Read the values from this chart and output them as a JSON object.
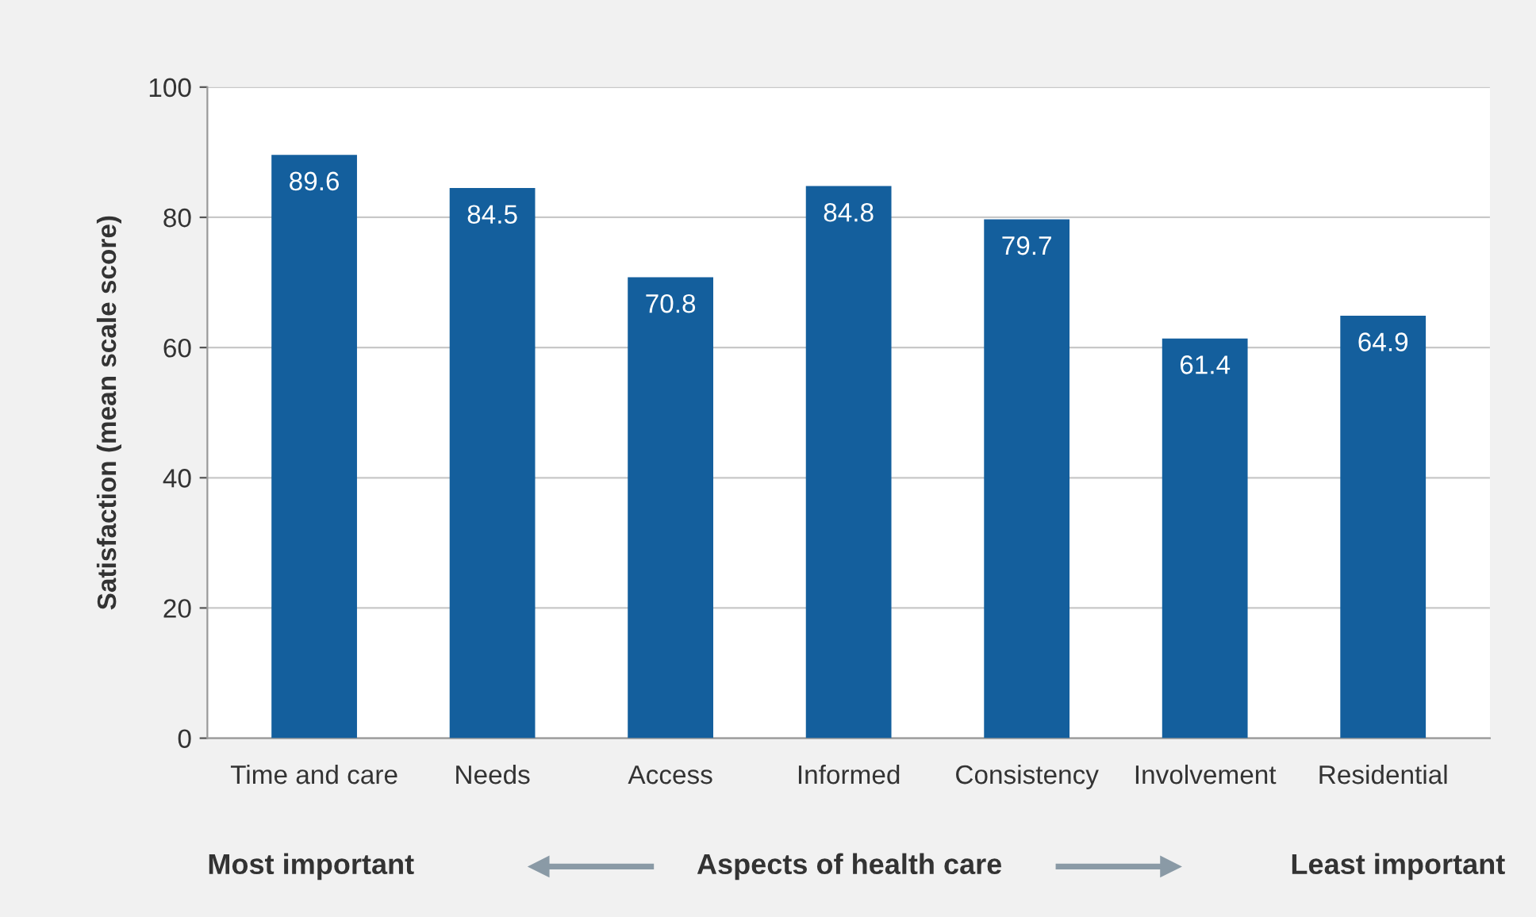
{
  "chart_data": {
    "type": "bar",
    "categories": [
      "Time and care",
      "Needs",
      "Access",
      "Informed",
      "Consistency",
      "Involvement",
      "Residential"
    ],
    "values": [
      89.6,
      84.5,
      70.8,
      84.8,
      79.7,
      61.4,
      64.9
    ],
    "color": "#145f9d",
    "ylabel": "Satisfaction (mean scale score)",
    "xlabel": "Aspects of health care",
    "annotations": [
      "Most important",
      "Least important"
    ],
    "ylim": [
      0,
      100
    ],
    "yticks": [
      0,
      20,
      40,
      60,
      80,
      100
    ],
    "grid": "y",
    "data_labels": true
  }
}
